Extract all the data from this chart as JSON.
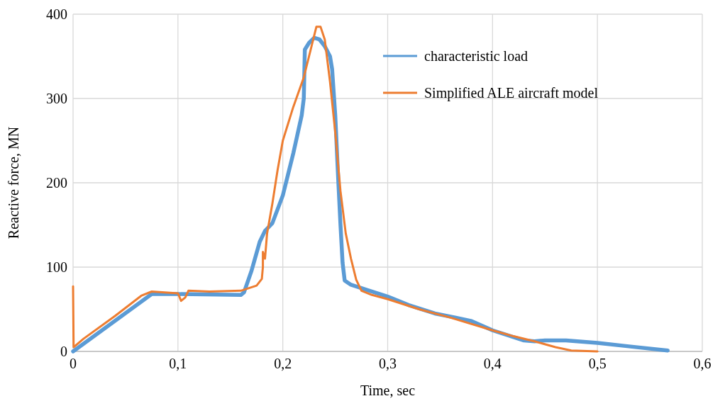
{
  "chart_data": {
    "type": "line",
    "xlabel": "Time, sec",
    "ylabel": "Reactive force, MN",
    "xlim": [
      0,
      0.6
    ],
    "xticks": [
      0,
      {
        "value": 0.1,
        "label": "0,1"
      },
      {
        "value": 0.2,
        "label": "0,2"
      },
      {
        "value": 0.3,
        "label": "0,3"
      },
      {
        "value": 0.4,
        "label": "0,4"
      },
      {
        "value": 0.5,
        "label": "0,5"
      },
      {
        "value": 0.6,
        "label": "0,6"
      }
    ],
    "ylim": [
      0,
      400
    ],
    "yticks": [
      0,
      100,
      200,
      300,
      400
    ],
    "grid": true,
    "legend": "top right",
    "marker": "none",
    "line_style": "solid",
    "series": [
      {
        "name": "characteristic load",
        "color": "#5b9bd5",
        "x": [
          0,
          0.075,
          0.1,
          0.16,
          0.163,
          0.17,
          0.178,
          0.183,
          0.19,
          0.2,
          0.21,
          0.218,
          0.22,
          0.221,
          0.225,
          0.23,
          0.235,
          0.24,
          0.245,
          0.247,
          0.25,
          0.253,
          0.255,
          0.257,
          0.259,
          0.265,
          0.28,
          0.3,
          0.32,
          0.345,
          0.365,
          0.38,
          0.4,
          0.43,
          0.44,
          0.45,
          0.47,
          0.5,
          0.53,
          0.567
        ],
        "values": [
          0,
          68,
          68,
          67,
          70,
          95,
          130,
          143,
          152,
          185,
          235,
          280,
          300,
          358,
          366,
          372,
          370,
          362,
          350,
          335,
          280,
          200,
          150,
          105,
          84,
          79,
          73,
          65,
          55,
          45,
          40,
          36,
          25,
          13,
          12,
          13,
          13,
          10,
          6,
          1
        ]
      },
      {
        "name": "Simplified ALE aircraft model",
        "color": "#ed7d31",
        "x": [
          0,
          0.0005,
          0.01,
          0.04,
          0.065,
          0.075,
          0.1,
          0.103,
          0.107,
          0.11,
          0.13,
          0.16,
          0.175,
          0.18,
          0.181,
          0.181,
          0.183,
          0.185,
          0.19,
          0.195,
          0.2,
          0.21,
          0.22,
          0.225,
          0.232,
          0.236,
          0.24,
          0.245,
          0.25,
          0.255,
          0.26,
          0.265,
          0.27,
          0.275,
          0.285,
          0.3,
          0.33,
          0.36,
          0.4,
          0.42,
          0.44,
          0.46,
          0.475,
          0.5
        ],
        "values": [
          77,
          5,
          15,
          42,
          66,
          71,
          69,
          60,
          64,
          72,
          71,
          72,
          78,
          86,
          100,
          118,
          110,
          140,
          175,
          215,
          250,
          290,
          325,
          350,
          385,
          385,
          370,
          320,
          260,
          190,
          140,
          110,
          85,
          72,
          67,
          62,
          50,
          40,
          25,
          18,
          12,
          5,
          1,
          0
        ]
      }
    ]
  }
}
